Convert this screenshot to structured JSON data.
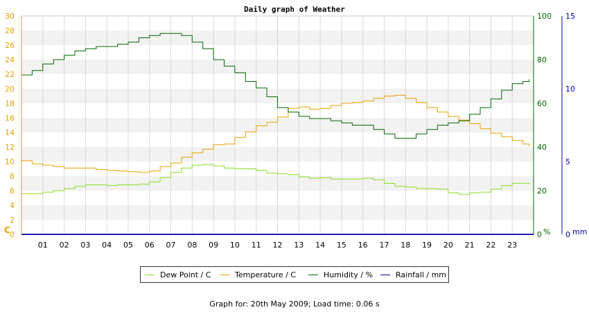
{
  "chart_data": {
    "type": "line",
    "title": "Daily graph of Weather",
    "x_ticks": [
      "01",
      "02",
      "03",
      "04",
      "05",
      "06",
      "07",
      "08",
      "09",
      "10",
      "11",
      "12",
      "13",
      "14",
      "15",
      "16",
      "17",
      "18",
      "19",
      "20",
      "21",
      "22",
      "23"
    ],
    "xlim": [
      0,
      24
    ],
    "axes": {
      "temp": {
        "label": "C",
        "ticks": [
          0,
          2,
          4,
          6,
          8,
          10,
          12,
          14,
          16,
          18,
          20,
          22,
          24,
          26,
          28,
          30
        ],
        "lim": [
          0,
          30
        ],
        "color": "#e8a000"
      },
      "humidity": {
        "label": "%",
        "ticks": [
          0,
          20,
          40,
          60,
          80,
          100
        ],
        "lim": [
          0,
          100
        ],
        "color": "#006600"
      },
      "rain": {
        "label": "mm",
        "ticks": [
          0,
          5,
          10,
          15
        ],
        "lim": [
          0,
          15
        ],
        "color": "#0000aa"
      }
    },
    "series": [
      {
        "name": "Dew Point / C",
        "axis": "temp",
        "color": "#88dd22",
        "points": [
          [
            0,
            5.6
          ],
          [
            0.5,
            5.6
          ],
          [
            1,
            5.8
          ],
          [
            1.5,
            6.0
          ],
          [
            2,
            6.3
          ],
          [
            2.5,
            6.6
          ],
          [
            3,
            6.8
          ],
          [
            3.5,
            6.8
          ],
          [
            4,
            6.7
          ],
          [
            4.5,
            6.8
          ],
          [
            5,
            6.8
          ],
          [
            5.5,
            6.9
          ],
          [
            6,
            7.2
          ],
          [
            6.5,
            7.8
          ],
          [
            7,
            8.5
          ],
          [
            7.5,
            9.1
          ],
          [
            8,
            9.5
          ],
          [
            8.5,
            9.6
          ],
          [
            9,
            9.4
          ],
          [
            9.5,
            9.1
          ],
          [
            10,
            9.0
          ],
          [
            10.5,
            9.0
          ],
          [
            11,
            8.8
          ],
          [
            11.5,
            8.4
          ],
          [
            12,
            8.3
          ],
          [
            12.5,
            8.2
          ],
          [
            13,
            7.9
          ],
          [
            13.5,
            7.7
          ],
          [
            14,
            7.8
          ],
          [
            14.5,
            7.6
          ],
          [
            15,
            7.6
          ],
          [
            15.5,
            7.6
          ],
          [
            16,
            7.7
          ],
          [
            16.5,
            7.5
          ],
          [
            17,
            7.0
          ],
          [
            17.5,
            6.6
          ],
          [
            18,
            6.5
          ],
          [
            18.5,
            6.3
          ],
          [
            19,
            6.3
          ],
          [
            19.5,
            6.2
          ],
          [
            20,
            5.7
          ],
          [
            20.5,
            5.5
          ],
          [
            21,
            5.7
          ],
          [
            21.5,
            5.8
          ],
          [
            22,
            6.2
          ],
          [
            22.5,
            6.7
          ],
          [
            23,
            7.0
          ],
          [
            23.8,
            6.9
          ]
        ]
      },
      {
        "name": "Temperature / C",
        "axis": "temp",
        "color": "#e8a000",
        "points": [
          [
            0,
            10.1
          ],
          [
            0.5,
            9.7
          ],
          [
            1,
            9.5
          ],
          [
            1.5,
            9.3
          ],
          [
            2,
            9.1
          ],
          [
            2.5,
            9.1
          ],
          [
            3,
            9.1
          ],
          [
            3.5,
            8.9
          ],
          [
            4,
            8.8
          ],
          [
            4.5,
            8.7
          ],
          [
            5,
            8.6
          ],
          [
            5.5,
            8.5
          ],
          [
            6,
            8.7
          ],
          [
            6.5,
            9.3
          ],
          [
            7,
            9.8
          ],
          [
            7.5,
            10.6
          ],
          [
            8,
            11.2
          ],
          [
            8.5,
            11.7
          ],
          [
            9,
            12.3
          ],
          [
            9.5,
            12.4
          ],
          [
            10,
            13.3
          ],
          [
            10.5,
            14.1
          ],
          [
            11,
            14.9
          ],
          [
            11.5,
            15.4
          ],
          [
            12,
            16.1
          ],
          [
            12.5,
            17.3
          ],
          [
            13,
            17.5
          ],
          [
            13.5,
            17.2
          ],
          [
            14,
            17.3
          ],
          [
            14.5,
            17.7
          ],
          [
            15,
            18.0
          ],
          [
            15.5,
            18.1
          ],
          [
            16,
            18.3
          ],
          [
            16.5,
            18.7
          ],
          [
            17,
            19.0
          ],
          [
            17.5,
            19.1
          ],
          [
            18,
            18.7
          ],
          [
            18.5,
            18.1
          ],
          [
            19,
            17.4
          ],
          [
            19.5,
            16.8
          ],
          [
            20,
            16.2
          ],
          [
            20.5,
            15.7
          ],
          [
            21,
            15.2
          ],
          [
            21.5,
            14.5
          ],
          [
            22,
            13.9
          ],
          [
            22.5,
            13.4
          ],
          [
            23,
            12.9
          ],
          [
            23.5,
            12.4
          ],
          [
            23.8,
            12.1
          ]
        ]
      },
      {
        "name": "Humidity / %",
        "axis": "humidity",
        "color": "#006600",
        "points": [
          [
            0,
            73
          ],
          [
            0.5,
            75
          ],
          [
            1,
            78
          ],
          [
            1.5,
            80
          ],
          [
            2,
            82
          ],
          [
            2.5,
            84
          ],
          [
            3,
            85
          ],
          [
            3.5,
            86
          ],
          [
            4,
            86
          ],
          [
            4.5,
            87
          ],
          [
            5,
            88
          ],
          [
            5.5,
            90
          ],
          [
            6,
            91
          ],
          [
            6.5,
            92
          ],
          [
            7,
            92
          ],
          [
            7.5,
            91
          ],
          [
            8,
            88
          ],
          [
            8.5,
            85
          ],
          [
            9,
            80
          ],
          [
            9.5,
            77
          ],
          [
            10,
            74
          ],
          [
            10.5,
            70
          ],
          [
            11,
            67
          ],
          [
            11.5,
            63
          ],
          [
            12,
            58
          ],
          [
            12.5,
            56
          ],
          [
            13,
            54
          ],
          [
            13.5,
            53
          ],
          [
            14,
            53
          ],
          [
            14.5,
            52
          ],
          [
            15,
            51
          ],
          [
            15.5,
            50
          ],
          [
            16,
            50
          ],
          [
            16.5,
            48
          ],
          [
            17,
            46
          ],
          [
            17.5,
            44
          ],
          [
            18,
            44
          ],
          [
            18.5,
            46
          ],
          [
            19,
            48
          ],
          [
            19.5,
            50
          ],
          [
            20,
            51
          ],
          [
            20.5,
            52
          ],
          [
            21,
            55
          ],
          [
            21.5,
            58
          ],
          [
            22,
            62
          ],
          [
            22.5,
            66
          ],
          [
            23,
            69
          ],
          [
            23.5,
            70
          ],
          [
            23.8,
            71
          ]
        ]
      },
      {
        "name": "Rainfall / mm",
        "axis": "rain",
        "color": "#0000aa",
        "points": [
          [
            0,
            0
          ],
          [
            24,
            0
          ]
        ]
      }
    ]
  },
  "footer": "Graph for: 20th May 2009; Load time: 0.06 s"
}
